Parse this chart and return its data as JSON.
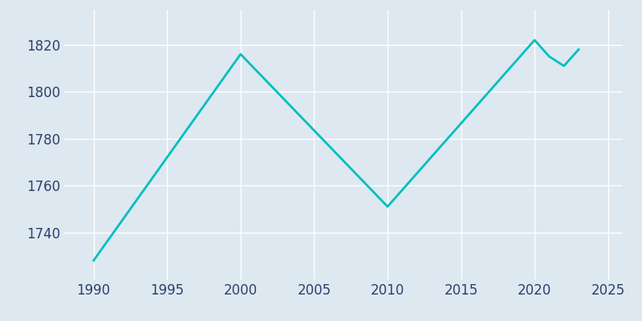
{
  "years": [
    1990,
    2000,
    2010,
    2020,
    2021,
    2022,
    2023
  ],
  "population": [
    1728,
    1816,
    1751,
    1822,
    1815,
    1811,
    1818
  ],
  "line_color": "#00BEBE",
  "background_color": "#dde8f0",
  "outer_background": "#dde8f0",
  "grid_color": "#ffffff",
  "text_color": "#2e3f6e",
  "xlim": [
    1988,
    2026
  ],
  "ylim": [
    1720,
    1835
  ],
  "xticks": [
    1990,
    1995,
    2000,
    2005,
    2010,
    2015,
    2020,
    2025
  ],
  "yticks": [
    1740,
    1760,
    1780,
    1800,
    1820
  ],
  "linewidth": 2.0,
  "label_fontsize": 12
}
